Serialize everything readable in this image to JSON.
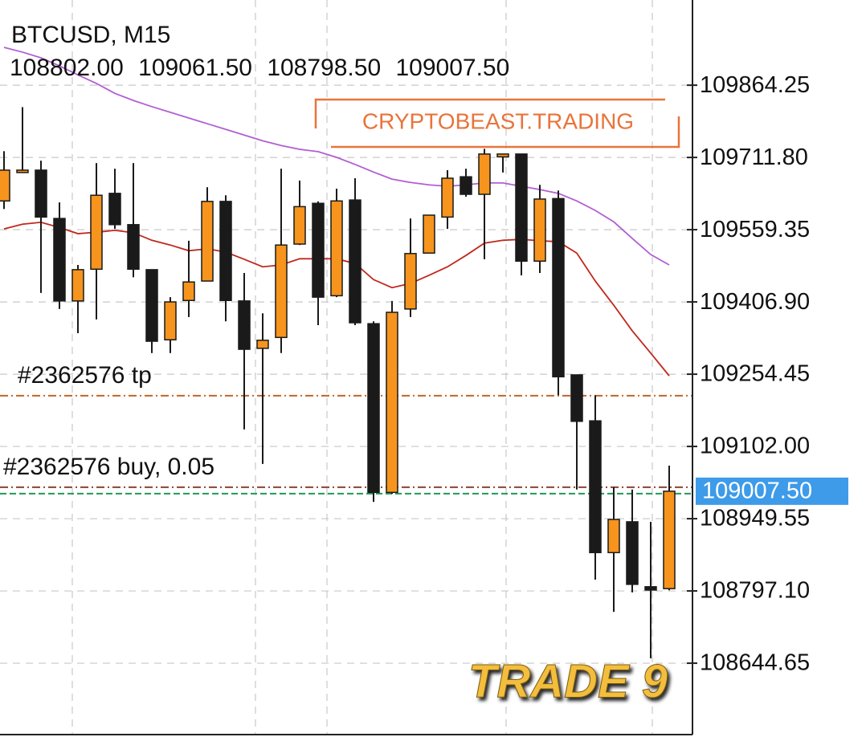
{
  "chart_data": {
    "type": "candlestick",
    "title": "BTCUSD, M15",
    "ohlc_labels": [
      "108802.00",
      "109061.50",
      "108798.50",
      "109007.50"
    ],
    "open": [
      109620,
      109685,
      109685,
      109583,
      109409,
      109476,
      109636,
      109570,
      109475,
      109327,
      109410,
      109451,
      109619,
      109409,
      109309,
      109332,
      109529,
      109615,
      109420,
      109622,
      109361,
      109005,
      109392,
      109510,
      109586,
      109671,
      109634,
      109713,
      109719,
      109493,
      109625,
      109253,
      109156,
      108878,
      108943,
      108806,
      108802
    ],
    "high": [
      109725,
      109818,
      109705,
      109617,
      109485,
      109700,
      109688,
      109700,
      109475,
      109417,
      109536,
      109649,
      109632,
      109468,
      109383,
      109688,
      109663,
      109619,
      109646,
      109668,
      109366,
      109409,
      109583,
      109590,
      109685,
      109688,
      109730,
      109719,
      109719,
      109654,
      109642,
      109253,
      109210,
      109016,
      109011,
      108943,
      109061.5
    ],
    "low": [
      109603,
      109680,
      109426,
      109392,
      109341,
      109370,
      109561,
      109459,
      109299,
      109299,
      109375,
      109451,
      109366,
      109138,
      109065,
      109299,
      109527,
      109358,
      109417,
      109358,
      108985,
      109002,
      109375,
      109510,
      109561,
      109629,
      109497,
      109680,
      109463,
      109468,
      109210,
      109011,
      108821,
      108753,
      108794,
      108655,
      108798.5
    ],
    "close": [
      109685,
      109685,
      109586,
      109409,
      109475,
      109632,
      109570,
      109476,
      109324,
      109407,
      109449,
      109619,
      109410,
      109307,
      109326,
      109527,
      109608,
      109417,
      109620,
      109363,
      109005,
      109385,
      109509,
      109590,
      109668,
      109634,
      109719,
      109719,
      109493,
      109624,
      109249,
      109155,
      108878,
      108948,
      108811,
      108799,
      109007.5
    ],
    "bull_color": "#f7941d",
    "bear_color": "#1a1a1a",
    "lines": [
      {
        "color": "#b25fd3",
        "values": [
          109944,
          109934,
          109922,
          109905,
          109886,
          109868,
          109847,
          109832,
          109819,
          109807,
          109795,
          109783,
          109771,
          109759,
          109747,
          109737,
          109729,
          109724,
          109712,
          109697,
          109681,
          109666,
          109659,
          109654,
          109651,
          109654,
          109658,
          109658,
          109651,
          109644,
          109636,
          109620,
          109600,
          109576,
          109541,
          109507,
          109485
        ]
      },
      {
        "color": "#c0281c",
        "values": [
          109561,
          109571,
          109575,
          109564,
          109551,
          109554,
          109558,
          109553,
          109537,
          109527,
          109515,
          109519,
          109512,
          109497,
          109481,
          109485,
          109498,
          109498,
          109498,
          109488,
          109454,
          109437,
          109446,
          109463,
          109481,
          109505,
          109531,
          109537,
          109539,
          109536,
          109534,
          109510,
          109451,
          109400,
          109346,
          109299,
          109251
        ]
      }
    ],
    "levels": [
      {
        "label": "#2362576 tp",
        "value": 109209,
        "color": "#c0652a"
      },
      {
        "label": "#2362576 buy, 0.05",
        "value": 109016,
        "color": "#8a4433"
      }
    ],
    "current_price": {
      "value": 109007.5,
      "label": "109007.50"
    },
    "current_color": "#3d9be9",
    "bid_line_color": "#1f9a5a",
    "watermark": "CRYPTOBEAST.TRADING",
    "badge": "TRADE 9",
    "ylim": [
      108494,
      110044
    ],
    "yticks": [
      109864.25,
      {
        "value": 109711.8,
        "label": "109711.80"
      },
      109559.35,
      {
        "value": 109406.9,
        "label": "109406.90"
      },
      109254.45,
      {
        "value": 109102,
        "label": "109102.00"
      },
      108949.55,
      {
        "value": 108797.1,
        "label": "108797.10"
      },
      108644.65
    ],
    "grid": true
  }
}
